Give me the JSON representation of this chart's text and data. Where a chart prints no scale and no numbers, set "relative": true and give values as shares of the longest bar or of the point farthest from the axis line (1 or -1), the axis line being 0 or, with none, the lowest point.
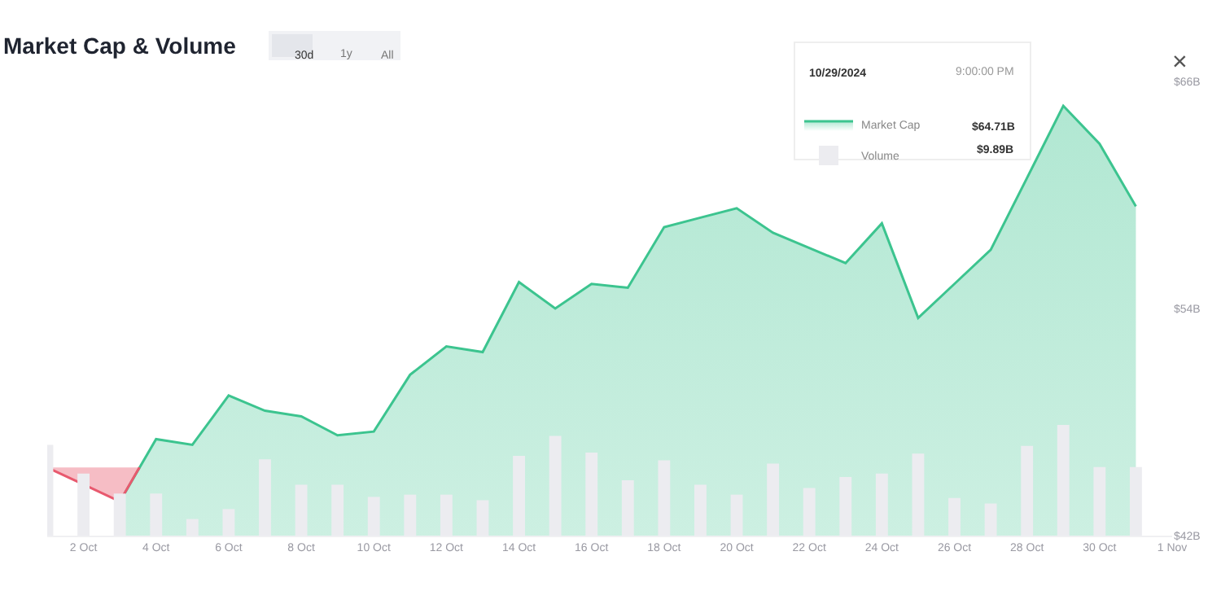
{
  "chart_data": [
    {
      "type": "area",
      "title": "Market Cap & Volume",
      "x": [
        "2024-10-03",
        "2024-10-04",
        "2024-10-05",
        "2024-10-06",
        "2024-10-07",
        "2024-10-08",
        "2024-10-09",
        "2024-10-10",
        "2024-10-11",
        "2024-10-12",
        "2024-10-13",
        "2024-10-14",
        "2024-10-15",
        "2024-10-16",
        "2024-10-17",
        "2024-10-18",
        "2024-10-19",
        "2024-10-20",
        "2024-10-21",
        "2024-10-22",
        "2024-10-23",
        "2024-10-24",
        "2024-10-25",
        "2024-10-26",
        "2024-10-27",
        "2024-10-28",
        "2024-10-29",
        "2024-10-30",
        "2024-10-31"
      ],
      "series": [
        {
          "name": "Market Cap",
          "color": "#3cc48f",
          "values": [
            43.8,
            47.1,
            46.8,
            49.4,
            48.6,
            48.3,
            47.3,
            47.5,
            50.5,
            52.0,
            51.7,
            55.4,
            54.0,
            55.3,
            55.1,
            58.3,
            58.8,
            59.3,
            58.0,
            57.2,
            56.4,
            58.5,
            53.5,
            55.3,
            57.1,
            60.9,
            64.71,
            62.7,
            59.4
          ]
        },
        {
          "color": "#e8596e",
          "x": [
            "2024-10-01",
            "2024-10-02",
            "2024-10-03",
            "2024-10-03T13:00"
          ],
          "values": [
            45.6,
            44.7,
            43.8,
            45.6
          ]
        }
      ],
      "xlim": [
        "2024-10-01",
        "2024-11-01"
      ],
      "xticks": [
        {
          "value": "2024-10-02",
          "label": "2 Oct"
        },
        {
          "value": "2024-10-04",
          "label": "4 Oct"
        },
        {
          "value": "2024-10-06",
          "label": "6 Oct"
        },
        {
          "value": "2024-10-08",
          "label": "8 Oct"
        },
        {
          "value": "2024-10-10",
          "label": "10 Oct"
        },
        {
          "value": "2024-10-12",
          "label": "12 Oct"
        },
        {
          "value": "2024-10-14",
          "label": "14 Oct"
        },
        {
          "value": "2024-10-16",
          "label": "16 Oct"
        },
        {
          "value": "2024-10-18",
          "label": "18 Oct"
        },
        {
          "value": "2024-10-20",
          "label": "20 Oct"
        },
        {
          "value": "2024-10-22",
          "label": "22 Oct"
        },
        {
          "value": "2024-10-24",
          "label": "24 Oct"
        },
        {
          "value": "2024-10-26",
          "label": "26 Oct"
        },
        {
          "value": "2024-10-28",
          "label": "28 Oct"
        },
        {
          "value": "2024-10-30",
          "label": "30 Oct"
        },
        {
          "value": "2024-11-01",
          "label": "1 Nov"
        }
      ],
      "ylim": [
        42,
        66
      ],
      "yticks": [
        {
          "value": 42,
          "label": "$42B"
        },
        {
          "value": 54,
          "label": "$54B"
        },
        {
          "value": 66,
          "label": "$66B"
        }
      ],
      "legend": "top right",
      "annotations": [
        "30d",
        "1y",
        "All",
        "×",
        "10/29/2024",
        "9:00:00 PM",
        "$64.71B",
        "$9.89B"
      ]
    },
    {
      "type": "bar",
      "relative": true,
      "legend": "top right",
      "xlim": [
        "2024-10-01",
        "2024-11-01"
      ],
      "x": [
        "2024-10-01",
        "2024-10-02",
        "2024-10-03",
        "2024-10-04",
        "2024-10-05",
        "2024-10-06",
        "2024-10-07",
        "2024-10-08",
        "2024-10-09",
        "2024-10-10",
        "2024-10-11",
        "2024-10-12",
        "2024-10-13",
        "2024-10-14",
        "2024-10-15",
        "2024-10-16",
        "2024-10-17",
        "2024-10-18",
        "2024-10-19",
        "2024-10-20",
        "2024-10-21",
        "2024-10-22",
        "2024-10-23",
        "2024-10-24",
        "2024-10-25",
        "2024-10-26",
        "2024-10-27",
        "2024-10-28",
        "2024-10-29",
        "2024-10-30",
        "2024-10-31"
      ],
      "series": [
        {
          "name": "Volume",
          "color": "#ececf0",
          "values": [
            0.82,
            0.56,
            0.38,
            0.38,
            0.15,
            0.24,
            0.69,
            0.46,
            0.46,
            0.35,
            0.37,
            0.37,
            0.32,
            0.72,
            0.9,
            0.75,
            0.5,
            0.68,
            0.46,
            0.37,
            0.65,
            0.43,
            0.53,
            0.56,
            0.74,
            0.34,
            0.29,
            0.81,
            1,
            0.62,
            0.62
          ]
        }
      ]
    }
  ]
}
